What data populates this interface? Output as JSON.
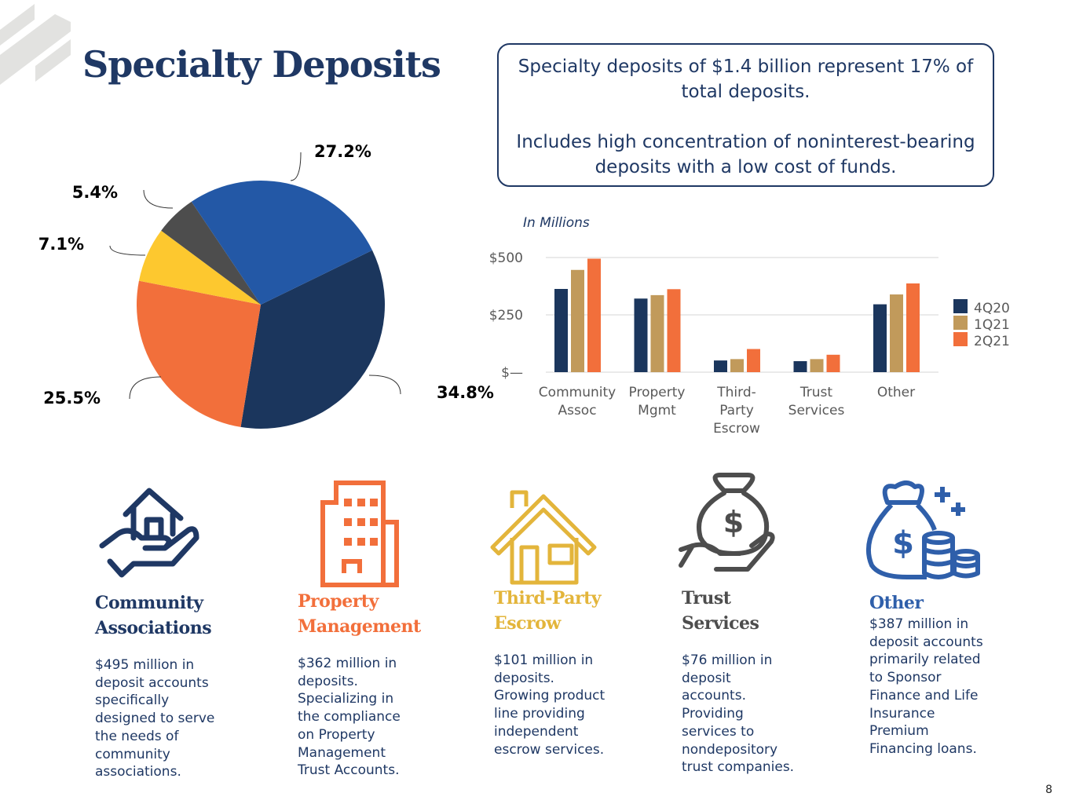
{
  "title": "Specialty Deposits",
  "callout": {
    "line1": "Specialty deposits of $1.4 billion represent 17% of total deposits.",
    "line2": "Includes high concentration of noninterest-bearing deposits with a low cost of funds."
  },
  "page_number": "8",
  "chart_data": [
    {
      "type": "pie",
      "slices": [
        {
          "label": "Community Associations",
          "value": 34.8,
          "text": "34.8%",
          "color": "#1b365d"
        },
        {
          "label": "Property Management",
          "value": 25.5,
          "text": "25.5%",
          "color": "#f26f3b"
        },
        {
          "label": "Third-Party Escrow",
          "value": 7.1,
          "text": "7.1%",
          "color": "#fdc82f"
        },
        {
          "label": "Trust Services",
          "value": 5.4,
          "text": "5.4%",
          "color": "#4d4d4d"
        },
        {
          "label": "Other",
          "value": 27.2,
          "text": "27.2%",
          "color": "#2358a6"
        }
      ]
    },
    {
      "type": "bar",
      "subtitle": "In Millions",
      "categories": [
        [
          "Community",
          "Assoc"
        ],
        [
          "Property",
          "Mgmt"
        ],
        [
          "Third-",
          "Party",
          "Escrow"
        ],
        [
          "Trust",
          "Services"
        ],
        [
          "Other"
        ]
      ],
      "yticks": [
        {
          "v": 0,
          "label": "$—"
        },
        {
          "v": 250,
          "label": "$250"
        },
        {
          "v": 500,
          "label": "$500"
        }
      ],
      "ylim": [
        0,
        500
      ],
      "legend_position": "right",
      "series": [
        {
          "name": "4Q20",
          "color": "#1b365d",
          "values": [
            363,
            321,
            51,
            48,
            296
          ]
        },
        {
          "name": "1Q21",
          "color": "#c19a5b",
          "values": [
            446,
            336,
            57,
            57,
            339
          ]
        },
        {
          "name": "2Q21",
          "color": "#f26f3b",
          "values": [
            495,
            362,
            101,
            76,
            387
          ]
        }
      ]
    }
  ],
  "segments": [
    {
      "title1": "Community",
      "title2": "Associations",
      "color": "#1f3864",
      "icon": "hand-house-icon",
      "text": "$495 million in deposit accounts specifically designed to serve the needs of community associations."
    },
    {
      "title1": "Property",
      "title2": "Management",
      "color": "#f26f3b",
      "icon": "building-icon",
      "text": "$362 million in deposits. Specializing in the compliance on Property Management Trust Accounts."
    },
    {
      "title1": "Third-Party",
      "title2": "Escrow",
      "color": "#e3b53b",
      "icon": "house-icon",
      "text": "$101 million in deposits. Growing product line providing independent escrow services."
    },
    {
      "title1": "Trust",
      "title2": "Services",
      "color": "#4d4d4d",
      "icon": "hand-money-bag-icon",
      "text": "$76 million in deposit accounts. Providing services to nondepository trust companies."
    },
    {
      "title1": "Other",
      "title2": "",
      "color": "#2f5faa",
      "icon": "money-bag-coins-icon",
      "text": "$387 million in deposit accounts primarily related to Sponsor Finance and Life Insurance Premium Financing loans."
    }
  ]
}
